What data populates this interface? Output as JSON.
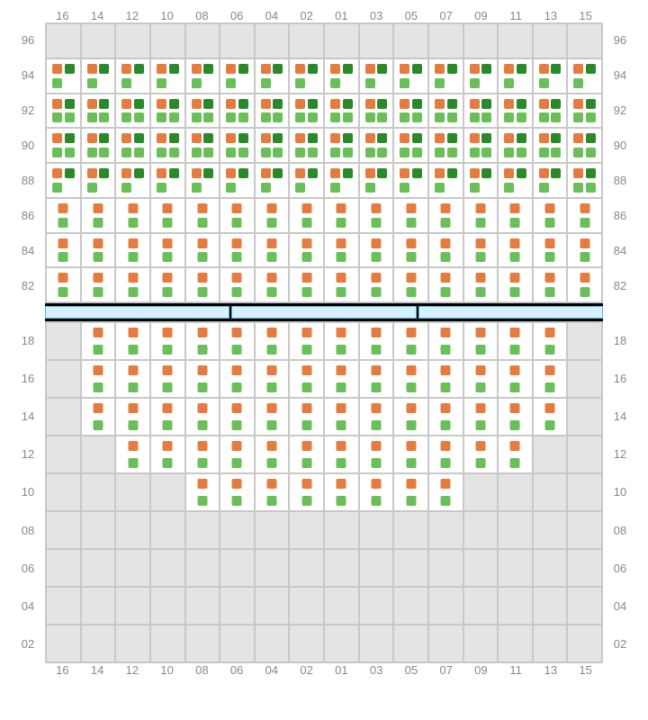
{
  "columns": [
    "16",
    "14",
    "12",
    "10",
    "08",
    "06",
    "04",
    "02",
    "01",
    "03",
    "05",
    "07",
    "09",
    "11",
    "13",
    "15"
  ],
  "top": {
    "rows": [
      "96",
      "94",
      "92",
      "90",
      "88",
      "86",
      "84",
      "82"
    ],
    "cells": [
      [
        "",
        "",
        "",
        "",
        "",
        "",
        "",
        "",
        "",
        "",
        "",
        "",
        "",
        "",
        "",
        ""
      ],
      [
        "p3",
        "p3",
        "p3",
        "p3",
        "p3",
        "p3",
        "p3",
        "p3",
        "p3",
        "p3",
        "p3",
        "p3",
        "p3",
        "p3",
        "p3",
        "p3"
      ],
      [
        "p4",
        "p4",
        "p4",
        "p4",
        "p4",
        "p4",
        "p4",
        "p4",
        "p4",
        "p4",
        "p4",
        "p4",
        "p4",
        "p4",
        "p4",
        "p4"
      ],
      [
        "p4",
        "p4",
        "p4",
        "p4",
        "p4",
        "p4",
        "p4",
        "p4",
        "p4",
        "p4",
        "p4",
        "p4",
        "p4",
        "p4",
        "p4",
        "p4"
      ],
      [
        "p3",
        "p3",
        "p3",
        "p3",
        "p3",
        "p3",
        "p3",
        "p3",
        "p3",
        "p3",
        "p3",
        "p3",
        "p3",
        "p3",
        "p3",
        "p4"
      ],
      [
        "p2",
        "p2",
        "p2",
        "p2",
        "p2",
        "p2",
        "p2",
        "p2",
        "p2",
        "p2",
        "p2",
        "p2",
        "p2",
        "p2",
        "p2",
        "p2"
      ],
      [
        "p2",
        "p2",
        "p2",
        "p2",
        "p2",
        "p2",
        "p2",
        "p2",
        "p2",
        "p2",
        "p2",
        "p2",
        "p2",
        "p2",
        "p2",
        "p2"
      ],
      [
        "p2",
        "p2",
        "p2",
        "p2",
        "p2",
        "p2",
        "p2",
        "p2",
        "p2",
        "p2",
        "p2",
        "p2",
        "p2",
        "p2",
        "p2",
        "p2"
      ]
    ]
  },
  "bottom": {
    "rows": [
      "18",
      "16",
      "14",
      "12",
      "10",
      "08",
      "06",
      "04",
      "02"
    ],
    "cells": [
      [
        "",
        "p2",
        "p2",
        "p2",
        "p2",
        "p2",
        "p2",
        "p2",
        "p2",
        "p2",
        "p2",
        "p2",
        "p2",
        "p2",
        "p2",
        ""
      ],
      [
        "",
        "p2",
        "p2",
        "p2",
        "p2",
        "p2",
        "p2",
        "p2",
        "p2",
        "p2",
        "p2",
        "p2",
        "p2",
        "p2",
        "p2",
        ""
      ],
      [
        "",
        "p2",
        "p2",
        "p2",
        "p2",
        "p2",
        "p2",
        "p2",
        "p2",
        "p2",
        "p2",
        "p2",
        "p2",
        "p2",
        "p2",
        ""
      ],
      [
        "",
        "",
        "p2",
        "p2",
        "p2",
        "p2",
        "p2",
        "p2",
        "p2",
        "p2",
        "p2",
        "p2",
        "p2",
        "p2",
        "",
        ""
      ],
      [
        "",
        "",
        "",
        "",
        "p2",
        "p2",
        "p2",
        "p2",
        "p2",
        "p2",
        "p2",
        "p2",
        "",
        "",
        "",
        ""
      ],
      [
        "",
        "",
        "",
        "",
        "",
        "",
        "",
        "",
        "",
        "",
        "",
        "",
        "",
        "",
        "",
        ""
      ],
      [
        "",
        "",
        "",
        "",
        "",
        "",
        "",
        "",
        "",
        "",
        "",
        "",
        "",
        "",
        "",
        ""
      ],
      [
        "",
        "",
        "",
        "",
        "",
        "",
        "",
        "",
        "",
        "",
        "",
        "",
        "",
        "",
        "",
        ""
      ],
      [
        "",
        "",
        "",
        "",
        "",
        "",
        "",
        "",
        "",
        "",
        "",
        "",
        "",
        "",
        "",
        ""
      ]
    ]
  },
  "colors": {
    "orange": "#e67b3f",
    "green": "#6bbf59",
    "darkgreen": "#2a8a2a",
    "gridBg": "#e4e4e4",
    "gridBorder": "#c8c8c8",
    "stage": "#d6f0ff",
    "stageBorder": "#5bb8e8"
  }
}
